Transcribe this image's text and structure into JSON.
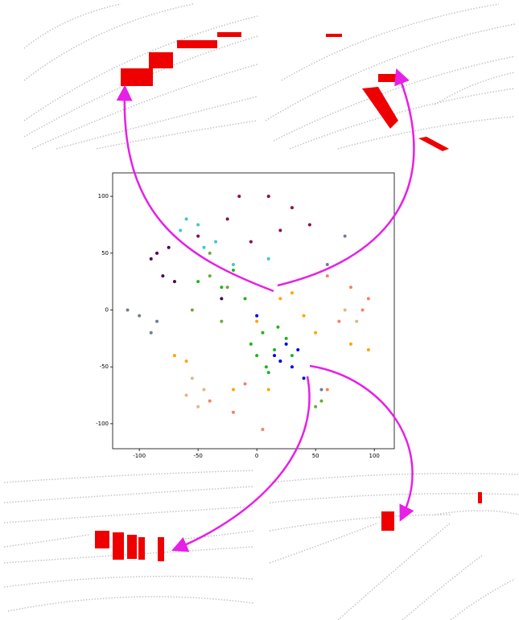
{
  "chart_data": {
    "type": "scatter",
    "xlim": [
      -122.7,
      117
    ],
    "ylim": [
      -122,
      120.6
    ],
    "xticks": [
      -100,
      -50,
      0,
      50,
      100
    ],
    "yticks": [
      100,
      50,
      0,
      -50,
      -100
    ],
    "series": [
      {
        "color": "#1fb41f",
        "x": [
          5,
          15,
          20,
          0,
          25,
          10,
          30,
          -5,
          18,
          8,
          -30,
          -50,
          -20,
          -10
        ],
        "y": [
          -20,
          -35,
          -45,
          -40,
          -25,
          -55,
          -40,
          -30,
          -15,
          -50,
          20,
          25,
          35,
          10
        ]
      },
      {
        "color": "#ffa500",
        "x": [
          20,
          30,
          50,
          -70,
          -60,
          10,
          -20,
          80,
          95,
          40,
          0
        ],
        "y": [
          10,
          15,
          -20,
          -40,
          -45,
          -70,
          -70,
          -30,
          -35,
          -5,
          -10
        ]
      },
      {
        "color": "#fa8060",
        "x": [
          80,
          95,
          70,
          60,
          -20,
          -40,
          5,
          60,
          90,
          -10
        ],
        "y": [
          20,
          10,
          -10,
          30,
          -90,
          -80,
          -105,
          -70,
          0,
          -65
        ]
      },
      {
        "color": "#0000ee",
        "x": [
          20,
          30,
          25,
          40,
          15,
          0,
          35
        ],
        "y": [
          -45,
          -50,
          -30,
          -60,
          -40,
          -5,
          -35
        ]
      },
      {
        "color": "#8b0a50",
        "x": [
          -15,
          10,
          30,
          45,
          -25,
          20,
          -50,
          -5
        ],
        "y": [
          100,
          100,
          90,
          75,
          80,
          70,
          65,
          60
        ]
      },
      {
        "color": "#40c8c8",
        "x": [
          -60,
          -50,
          -65,
          -35,
          -20,
          10,
          -45
        ],
        "y": [
          80,
          75,
          70,
          60,
          40,
          45,
          55
        ]
      },
      {
        "color": "#708090",
        "x": [
          -100,
          -90,
          -85,
          60,
          75,
          55,
          -110
        ],
        "y": [
          -5,
          -20,
          -10,
          40,
          65,
          -70,
          0
        ]
      },
      {
        "color": "#deb887",
        "x": [
          -55,
          -60,
          -45,
          75,
          85,
          -50
        ],
        "y": [
          -60,
          -75,
          -70,
          0,
          -10,
          -85
        ]
      },
      {
        "color": "#4b0050",
        "x": [
          -75,
          -90,
          -70,
          -80,
          -30,
          -85
        ],
        "y": [
          55,
          45,
          25,
          30,
          10,
          50
        ]
      },
      {
        "color": "#6aaa3a",
        "x": [
          -40,
          -55,
          -30,
          55,
          50,
          -40,
          -25
        ],
        "y": [
          30,
          0,
          -10,
          -80,
          -85,
          50,
          20
        ]
      }
    ]
  }
}
